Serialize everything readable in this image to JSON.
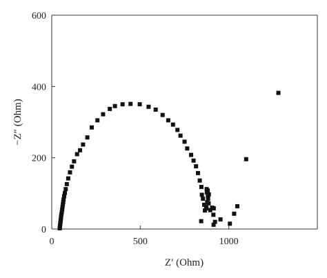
{
  "chart_data": {
    "type": "scatter",
    "xlabel": "Z′ (Ohm)",
    "ylabel": "−Z″ (Ohm)",
    "xlim": [
      0,
      1500
    ],
    "ylim": [
      0,
      600
    ],
    "xticks": [
      0,
      500,
      1000
    ],
    "yticks": [
      0,
      200,
      400,
      600
    ],
    "grid": false,
    "legend": "none",
    "marker": "square",
    "marker_color": "#111111",
    "series": [
      {
        "points": [
          [
            45,
            2
          ],
          [
            46,
            6
          ],
          [
            47,
            10
          ],
          [
            48,
            14
          ],
          [
            49,
            18
          ],
          [
            50,
            22
          ],
          [
            51,
            26
          ],
          [
            52,
            31
          ],
          [
            53,
            36
          ],
          [
            55,
            42
          ],
          [
            57,
            48
          ],
          [
            59,
            55
          ],
          [
            61,
            62
          ],
          [
            63,
            69
          ],
          [
            65,
            76
          ],
          [
            67,
            83
          ],
          [
            70,
            92
          ],
          [
            74,
            101
          ],
          [
            79,
            112
          ],
          [
            85,
            126
          ],
          [
            93,
            142
          ],
          [
            103,
            159
          ],
          [
            114,
            175
          ],
          [
            126,
            190
          ],
          [
            143,
            210
          ],
          [
            160,
            221
          ],
          [
            177,
            237
          ],
          [
            201,
            257
          ],
          [
            226,
            285
          ],
          [
            258,
            305
          ],
          [
            290,
            322
          ],
          [
            328,
            337
          ],
          [
            357,
            345
          ],
          [
            400,
            350
          ],
          [
            445,
            351
          ],
          [
            497,
            350
          ],
          [
            547,
            343
          ],
          [
            587,
            335
          ],
          [
            626,
            320
          ],
          [
            658,
            305
          ],
          [
            685,
            293
          ],
          [
            710,
            278
          ],
          [
            727,
            262
          ],
          [
            750,
            245
          ],
          [
            765,
            226
          ],
          [
            787,
            208
          ],
          [
            801,
            192
          ],
          [
            815,
            176
          ],
          [
            826,
            157
          ],
          [
            836,
            136
          ],
          [
            845,
            118
          ],
          [
            848,
            96
          ],
          [
            854,
            85
          ],
          [
            861,
            68
          ],
          [
            865,
            52
          ],
          [
            872,
            62
          ],
          [
            878,
            75
          ],
          [
            883,
            85
          ],
          [
            887,
            97
          ],
          [
            876,
            103
          ],
          [
            881,
            108
          ],
          [
            875,
            112
          ],
          [
            882,
            92
          ],
          [
            886,
            72
          ],
          [
            874,
            58
          ],
          [
            895,
            53
          ],
          [
            906,
            60
          ],
          [
            915,
            58
          ],
          [
            913,
            40
          ],
          [
            922,
            20
          ],
          [
            914,
            12
          ],
          [
            953,
            27
          ],
          [
            1006,
            15
          ],
          [
            1030,
            43
          ],
          [
            1048,
            64
          ],
          [
            844,
            22
          ],
          [
            1098,
            196
          ],
          [
            1280,
            382
          ]
        ]
      }
    ]
  }
}
